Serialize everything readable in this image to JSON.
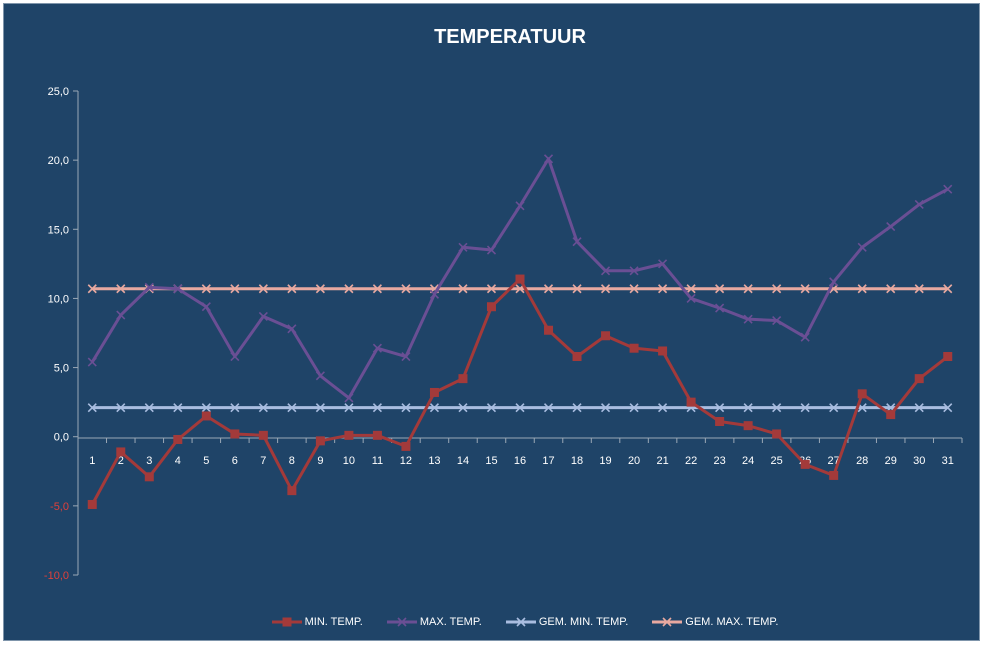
{
  "chart_data": {
    "type": "line",
    "title": "TEMPERATUUR",
    "xlabel": "",
    "ylabel": "",
    "ylim": [
      -10,
      25
    ],
    "yticks": [
      "25,0",
      "20,0",
      "15,0",
      "10,0",
      "5,0",
      "0,0",
      "-5,0",
      "-10,0"
    ],
    "categories": [
      "1",
      "2",
      "3",
      "4",
      "5",
      "6",
      "7",
      "8",
      "9",
      "10",
      "11",
      "12",
      "13",
      "14",
      "15",
      "16",
      "17",
      "18",
      "19",
      "20",
      "21",
      "22",
      "23",
      "24",
      "25",
      "26",
      "27",
      "28",
      "29",
      "30",
      "31"
    ],
    "legend_position": "bottom",
    "series": [
      {
        "name": "MIN. TEMP.",
        "color": "#a33a3a",
        "marker": "square",
        "values": [
          -4.9,
          -1.1,
          -2.9,
          -0.2,
          1.5,
          0.2,
          0.1,
          -3.9,
          -0.3,
          0.1,
          0.1,
          -0.7,
          3.2,
          4.2,
          9.4,
          11.4,
          7.7,
          5.8,
          7.3,
          6.4,
          6.2,
          2.5,
          1.1,
          0.8,
          0.2,
          -2.0,
          -2.8,
          3.1,
          1.6,
          4.2,
          5.8
        ]
      },
      {
        "name": "MAX. TEMP.",
        "color": "#6a4f94",
        "marker": "x",
        "values": [
          5.4,
          8.8,
          10.8,
          10.7,
          9.4,
          5.8,
          8.7,
          7.8,
          4.4,
          2.8,
          6.4,
          5.8,
          10.3,
          13.7,
          13.5,
          16.7,
          20.1,
          14.1,
          12.0,
          12.0,
          12.5,
          10.0,
          9.3,
          8.5,
          8.4,
          7.2,
          11.2,
          13.7,
          15.2,
          16.8,
          17.9
        ]
      },
      {
        "name": "GEM. MIN. TEMP.",
        "color": "#a9bde0",
        "marker": "x",
        "values": [
          2.1,
          2.1,
          2.1,
          2.1,
          2.1,
          2.1,
          2.1,
          2.1,
          2.1,
          2.1,
          2.1,
          2.1,
          2.1,
          2.1,
          2.1,
          2.1,
          2.1,
          2.1,
          2.1,
          2.1,
          2.1,
          2.1,
          2.1,
          2.1,
          2.1,
          2.1,
          2.1,
          2.1,
          2.1,
          2.1,
          2.1
        ]
      },
      {
        "name": "GEM. MAX. TEMP.",
        "color": "#e8a9a0",
        "marker": "x",
        "values": [
          10.7,
          10.7,
          10.7,
          10.7,
          10.7,
          10.7,
          10.7,
          10.7,
          10.7,
          10.7,
          10.7,
          10.7,
          10.7,
          10.7,
          10.7,
          10.7,
          10.7,
          10.7,
          10.7,
          10.7,
          10.7,
          10.7,
          10.7,
          10.7,
          10.7,
          10.7,
          10.7,
          10.7,
          10.7,
          10.7,
          10.7
        ]
      }
    ]
  }
}
